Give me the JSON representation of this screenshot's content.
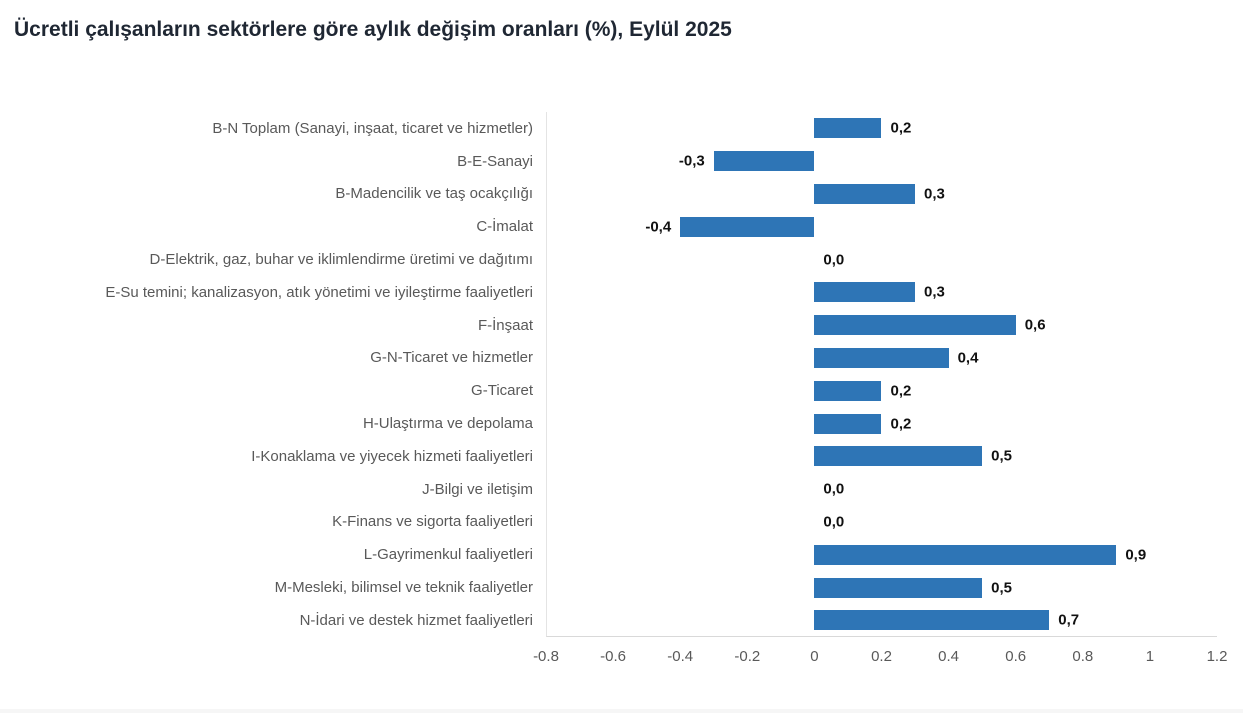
{
  "header": {
    "title": "Ücretli çalışanların sektörlere göre aylık değişim oranları (%), Eylül 2025"
  },
  "chart_data": {
    "type": "bar",
    "orientation": "horizontal",
    "title": "Ücretli çalışanların sektörlere göre aylık değişim oranları (%), Eylül 2025",
    "categories": [
      "B-N Toplam (Sanayi, inşaat, ticaret ve hizmetler)",
      "B-E-Sanayi",
      "B-Madencilik ve taş ocakçılığı",
      "C-İmalat",
      "D-Elektrik, gaz, buhar ve iklimlendirme üretimi ve dağıtımı",
      "E-Su temini; kanalizasyon, atık yönetimi ve iyileştirme faaliyetleri",
      "F-İnşaat",
      "G-N-Ticaret ve hizmetler",
      "G-Ticaret",
      "H-Ulaştırma ve depolama",
      "I-Konaklama ve yiyecek hizmeti faaliyetleri",
      "J-Bilgi ve iletişim",
      "K-Finans ve sigorta faaliyetleri",
      "L-Gayrimenkul faaliyetleri",
      "M-Mesleki, bilimsel ve teknik faaliyetler",
      "N-İdari ve destek hizmet faaliyetleri"
    ],
    "values": [
      0.2,
      -0.3,
      0.3,
      -0.4,
      0.0,
      0.3,
      0.6,
      0.4,
      0.2,
      0.2,
      0.5,
      0.0,
      0.0,
      0.9,
      0.5,
      0.7
    ],
    "value_labels": [
      "0,2",
      "-0,3",
      "0,3",
      "-0,4",
      "0,0",
      "0,3",
      "0,6",
      "0,4",
      "0,2",
      "0,2",
      "0,5",
      "0,0",
      "0,0",
      "0,9",
      "0,5",
      "0,7"
    ],
    "xticks": [
      "-0.8",
      "-0.6",
      "-0.4",
      "-0.2",
      "0",
      "0.2",
      "0.4",
      "0.6",
      "0.8",
      "1",
      "1.2"
    ],
    "xtick_values": [
      -0.8,
      -0.6,
      -0.4,
      -0.2,
      0,
      0.2,
      0.4,
      0.6,
      0.8,
      1,
      1.2
    ],
    "xlim": [
      -0.8,
      1.2
    ],
    "xlabel": "",
    "ylabel": "",
    "legend": "none",
    "grid": "off",
    "value_format": "decimal-comma"
  },
  "colors": {
    "bar": "#2E75B6",
    "title_text": "#1F2733",
    "category_text": "#595959",
    "axis_text": "#595959",
    "value_text": "#111111",
    "axis_line": "#D9D9D9"
  }
}
